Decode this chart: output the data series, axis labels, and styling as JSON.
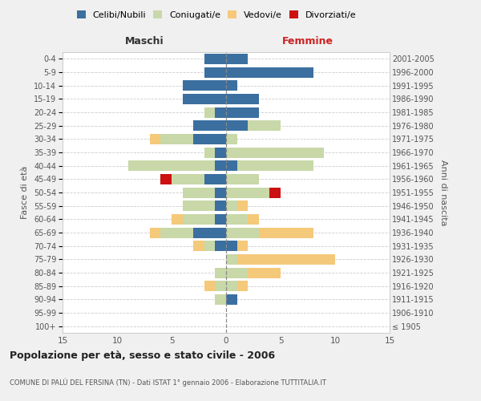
{
  "age_groups": [
    "100+",
    "95-99",
    "90-94",
    "85-89",
    "80-84",
    "75-79",
    "70-74",
    "65-69",
    "60-64",
    "55-59",
    "50-54",
    "45-49",
    "40-44",
    "35-39",
    "30-34",
    "25-29",
    "20-24",
    "15-19",
    "10-14",
    "5-9",
    "0-4"
  ],
  "birth_years": [
    "≤ 1905",
    "1906-1910",
    "1911-1915",
    "1916-1920",
    "1921-1925",
    "1926-1930",
    "1931-1935",
    "1936-1940",
    "1941-1945",
    "1946-1950",
    "1951-1955",
    "1956-1960",
    "1961-1965",
    "1966-1970",
    "1971-1975",
    "1976-1980",
    "1981-1985",
    "1986-1990",
    "1991-1995",
    "1996-2000",
    "2001-2005"
  ],
  "male": {
    "celibi": [
      0,
      0,
      0,
      0,
      0,
      0,
      1,
      3,
      1,
      1,
      1,
      2,
      1,
      1,
      3,
      3,
      1,
      4,
      4,
      2,
      2
    ],
    "coniugati": [
      0,
      0,
      1,
      1,
      1,
      0,
      1,
      3,
      3,
      3,
      3,
      3,
      8,
      1,
      3,
      0,
      1,
      0,
      0,
      0,
      0
    ],
    "vedovi": [
      0,
      0,
      0,
      1,
      0,
      0,
      1,
      1,
      1,
      0,
      0,
      0,
      0,
      0,
      1,
      0,
      0,
      0,
      0,
      0,
      0
    ],
    "divorziati": [
      0,
      0,
      0,
      0,
      0,
      0,
      0,
      0,
      0,
      0,
      0,
      1,
      0,
      0,
      0,
      0,
      0,
      0,
      0,
      0,
      0
    ]
  },
  "female": {
    "nubili": [
      0,
      0,
      1,
      0,
      0,
      0,
      1,
      0,
      0,
      0,
      0,
      0,
      1,
      0,
      0,
      2,
      3,
      3,
      1,
      8,
      2
    ],
    "coniugate": [
      0,
      0,
      0,
      1,
      2,
      1,
      0,
      3,
      2,
      1,
      4,
      3,
      7,
      9,
      1,
      3,
      0,
      0,
      0,
      0,
      0
    ],
    "vedove": [
      0,
      0,
      0,
      1,
      3,
      9,
      1,
      5,
      1,
      1,
      0,
      0,
      0,
      0,
      0,
      0,
      0,
      0,
      0,
      0,
      0
    ],
    "divorziate": [
      0,
      0,
      0,
      0,
      0,
      0,
      0,
      0,
      0,
      0,
      1,
      0,
      0,
      0,
      0,
      0,
      0,
      0,
      0,
      0,
      0
    ]
  },
  "colors": {
    "celibi_nubili": "#3B6FA0",
    "coniugati": "#C8D8A8",
    "vedovi": "#F5C97A",
    "divorziati": "#CC1111"
  },
  "title": "Popolazione per età, sesso e stato civile - 2006",
  "subtitle": "COMUNE DI PALÙ DEL FERSINA (TN) - Dati ISTAT 1° gennaio 2006 - Elaborazione TUTTITALIA.IT",
  "xlabel_left": "Maschi",
  "xlabel_right": "Femmine",
  "ylabel_left": "Fasce di età",
  "ylabel_right": "Anni di nascita",
  "xlim": 15,
  "bg_color": "#F0F0F0",
  "plot_bg_color": "#FFFFFF",
  "legend_labels": [
    "Celibi/Nubili",
    "Coniugati/e",
    "Vedovi/e",
    "Divorziati/e"
  ]
}
